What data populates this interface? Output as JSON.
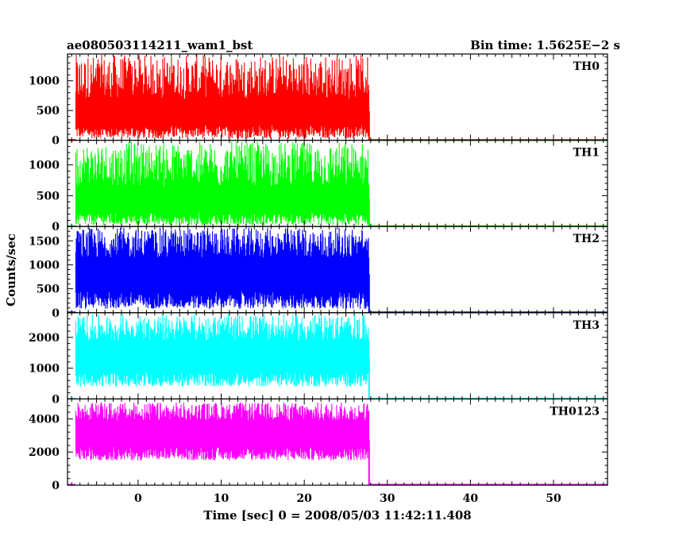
{
  "title_left": "ae080503114211_wam1_bst",
  "title_right": "Bin time: 1.5625E−2 s",
  "ylabel": "Counts/sec",
  "xlabel": "Time [sec] 0 = 2008/05/03 11:42:11.408",
  "chart_data": {
    "type": "line",
    "x_range": [
      -8.5,
      56.5
    ],
    "x_ticks": [
      0,
      10,
      20,
      30,
      40,
      50
    ],
    "x_tick_labels": [
      "0",
      "10",
      "20",
      "30",
      "40",
      "50"
    ],
    "grid": false,
    "panels": [
      {
        "label": "TH0",
        "color": "#ff0000",
        "ylim": [
          0,
          1450
        ],
        "y_ticks": [
          0,
          500,
          1000
        ],
        "y_tick_labels": [
          "0",
          "500",
          "1000"
        ],
        "active_interval": [
          -7.5,
          27.8
        ],
        "active_min_range": [
          30,
          260
        ],
        "active_max_range": [
          700,
          1440
        ],
        "after_value": 5
      },
      {
        "label": "TH1",
        "color": "#00ff00",
        "ylim": [
          0,
          1400
        ],
        "y_ticks": [
          0,
          500,
          1000
        ],
        "y_tick_labels": [
          "0",
          "500",
          "1000"
        ],
        "active_interval": [
          -7.5,
          27.8
        ],
        "active_min_range": [
          20,
          230
        ],
        "active_max_range": [
          650,
          1380
        ],
        "after_value": 5
      },
      {
        "label": "TH2",
        "color": "#0000ff",
        "ylim": [
          0,
          1800
        ],
        "y_ticks": [
          0,
          500,
          1000,
          1500
        ],
        "y_tick_labels": [
          "0",
          "500",
          "1000",
          "1500"
        ],
        "active_interval": [
          -7.5,
          27.8
        ],
        "active_min_range": [
          80,
          450
        ],
        "active_max_range": [
          1150,
          1780
        ],
        "after_value": 10
      },
      {
        "label": "TH3",
        "color": "#00ffff",
        "ylim": [
          0,
          2800
        ],
        "y_ticks": [
          0,
          1000,
          2000
        ],
        "y_tick_labels": [
          "0",
          "1000",
          "2000"
        ],
        "active_interval": [
          -7.5,
          27.8
        ],
        "active_min_range": [
          400,
          900
        ],
        "active_max_range": [
          1900,
          2750
        ],
        "after_value": 10
      },
      {
        "label": "TH0123",
        "color": "#ff00ff",
        "ylim": [
          0,
          5200
        ],
        "y_ticks": [
          0,
          2000,
          4000
        ],
        "y_tick_labels": [
          "0",
          "2000",
          "4000"
        ],
        "active_interval": [
          -7.5,
          27.8
        ],
        "active_min_range": [
          1500,
          2300
        ],
        "active_max_range": [
          3900,
          5000
        ],
        "after_value": 30
      }
    ]
  }
}
